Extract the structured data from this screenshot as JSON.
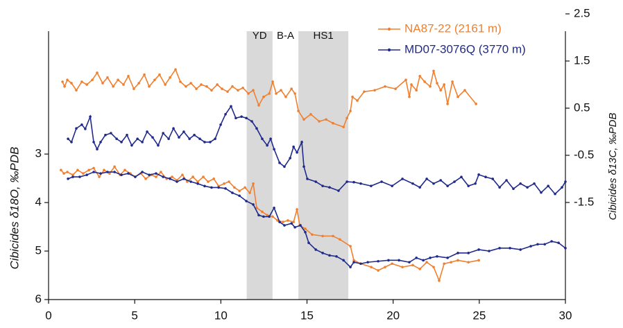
{
  "chart_data": {
    "type": "line",
    "xlim": [
      0,
      30
    ],
    "xticks": [
      0,
      5,
      10,
      15,
      20,
      25,
      30
    ],
    "ylim": [
      0.11,
      6
    ],
    "y_inverted": true,
    "yticks": [
      3,
      4,
      5,
      6
    ],
    "y2lim": [
      -3.56,
      2.5
    ],
    "y2ticks": [
      2.5,
      1.5,
      0.5,
      -0.5,
      -1.5
    ],
    "y_label": "Cibicides δ18O, ‰PDB",
    "y2_label": "Cibicides δ13C, ‰PDB",
    "legend": "top-right",
    "periods": [
      {
        "label": "YD",
        "start": 11.5,
        "end": 13,
        "shaded": true
      },
      {
        "label": "B-A",
        "start": 13,
        "end": 14.5,
        "shaded": false
      },
      {
        "label": "HS1",
        "start": 14.5,
        "end": 17.4,
        "shaded": true
      }
    ],
    "series": [
      {
        "name": "NA87-22 (2161 m)",
        "color": "#f07f2e",
        "axis": "y2",
        "x": [
          0.81,
          0.93,
          1.09,
          1.33,
          1.61,
          1.93,
          2.22,
          2.54,
          2.82,
          3.14,
          3.42,
          3.75,
          4.03,
          4.35,
          4.63,
          4.95,
          5.24,
          5.56,
          5.84,
          6.16,
          6.44,
          6.77,
          7.05,
          7.37,
          7.65,
          7.97,
          8.26,
          8.58,
          8.86,
          9.18,
          9.46,
          9.79,
          10.07,
          10.39,
          10.67,
          10.99,
          11.28,
          11.6,
          11.88,
          12.2,
          12.48,
          12.81,
          13.01,
          13.21,
          13.49,
          13.77,
          14.1,
          14.3,
          14.5,
          14.82,
          15.22,
          15.71,
          16.11,
          16.51,
          17.12,
          17.32,
          17.52,
          17.64,
          17.92,
          18.32,
          18.93,
          19.53,
          20.14,
          20.74,
          20.94,
          21.06,
          21.35,
          21.55,
          21.83,
          22.15,
          22.35,
          22.55,
          22.76,
          22.96,
          23.16,
          23.44,
          23.76,
          24.16,
          24.81
        ],
        "values": [
          1.06,
          0.96,
          1.1,
          1.03,
          0.88,
          1.06,
          1.0,
          1.1,
          1.25,
          1.03,
          1.15,
          0.96,
          1.1,
          1.0,
          1.18,
          0.91,
          1.03,
          1.21,
          0.96,
          1.1,
          1.21,
          1.0,
          1.15,
          1.32,
          1.06,
          0.96,
          1.03,
          0.91,
          1.0,
          0.96,
          0.88,
          1.0,
          0.91,
          0.85,
          0.96,
          0.88,
          0.93,
          0.81,
          0.88,
          0.56,
          0.74,
          0.81,
          1.06,
          0.81,
          0.88,
          0.74,
          0.91,
          0.81,
          0.44,
          0.26,
          0.37,
          0.22,
          0.26,
          0.18,
          0.1,
          0.29,
          0.44,
          0.74,
          0.66,
          0.85,
          0.88,
          0.96,
          0.91,
          1.1,
          0.74,
          1.0,
          0.88,
          1.18,
          1.06,
          0.96,
          1.29,
          1.03,
          0.88,
          1.0,
          0.59,
          1.06,
          0.74,
          0.88,
          0.59
        ]
      },
      {
        "name": "MD07-3076Q (3770 m)",
        "color": "#1f2a8c",
        "axis": "y2",
        "x": [
          1.13,
          1.33,
          1.61,
          1.93,
          2.13,
          2.42,
          2.62,
          2.82,
          3.02,
          3.3,
          3.62,
          3.95,
          4.23,
          4.55,
          4.83,
          5.16,
          5.44,
          5.72,
          6.04,
          6.36,
          6.65,
          6.97,
          7.25,
          7.57,
          7.85,
          8.18,
          8.46,
          8.78,
          9.06,
          9.38,
          9.67,
          9.99,
          10.27,
          10.59,
          10.87,
          11.2,
          11.48,
          11.8,
          12.08,
          12.4,
          12.69,
          12.89,
          13.09,
          13.41,
          13.69,
          14.02,
          14.22,
          14.42,
          14.7,
          14.82,
          15.02,
          15.51,
          15.91,
          16.31,
          16.83,
          17.32,
          17.72,
          18.12,
          18.72,
          19.33,
          19.94,
          20.54,
          21.14,
          21.55,
          21.95,
          22.35,
          22.76,
          23.16,
          23.56,
          23.96,
          24.37,
          24.77,
          24.97,
          25.37,
          25.78,
          26.18,
          26.58,
          26.98,
          27.39,
          27.79,
          28.19,
          28.59,
          29.0,
          29.4,
          29.8,
          30.0
        ],
        "values": [
          -0.15,
          -0.22,
          0.07,
          0.15,
          0.06,
          0.32,
          -0.22,
          -0.37,
          -0.22,
          -0.07,
          -0.03,
          -0.15,
          -0.22,
          -0.07,
          -0.29,
          -0.15,
          -0.22,
          0,
          -0.12,
          -0.29,
          -0.03,
          -0.15,
          0.07,
          -0.12,
          0,
          -0.15,
          -0.07,
          -0.15,
          -0.22,
          -0.22,
          -0.15,
          0.15,
          0.37,
          0.54,
          0.29,
          0.32,
          0.29,
          0.22,
          0.07,
          -0.15,
          -0.29,
          -0.15,
          -0.37,
          -0.66,
          -0.74,
          -0.56,
          -0.32,
          -0.44,
          -0.22,
          -0.74,
          -1.0,
          -1.06,
          -1.15,
          -1.18,
          -1.25,
          -1.06,
          -1.07,
          -1.1,
          -1.15,
          -1.06,
          -1.15,
          -1.0,
          -1.1,
          -1.18,
          -1.0,
          -1.1,
          -1.03,
          -1.15,
          -1.06,
          -0.96,
          -1.15,
          -1.1,
          -0.91,
          -0.96,
          -1.0,
          -1.18,
          -1.03,
          -1.21,
          -1.1,
          -1.18,
          -1.1,
          -1.29,
          -1.15,
          -1.32,
          -1.18,
          -1.06
        ]
      },
      {
        "color": "#f07f2e",
        "axis": "y",
        "x": [
          0.72,
          0.89,
          1.09,
          1.41,
          1.69,
          2.01,
          2.34,
          2.62,
          2.94,
          3.22,
          3.54,
          3.83,
          4.15,
          4.43,
          4.75,
          5.03,
          5.36,
          5.64,
          5.96,
          6.24,
          6.52,
          6.85,
          7.17,
          7.45,
          7.77,
          8.05,
          8.38,
          8.66,
          8.98,
          9.26,
          9.59,
          9.87,
          10.19,
          10.47,
          10.79,
          11.08,
          11.4,
          11.68,
          11.88,
          12.08,
          12.4,
          12.69,
          13.01,
          13.29,
          13.61,
          13.89,
          14.22,
          14.42,
          14.58,
          14.9,
          15.3,
          15.91,
          16.51,
          16.91,
          17.52,
          17.72,
          18.12,
          18.73,
          19.13,
          19.53,
          19.94,
          20.54,
          21.14,
          21.55,
          21.95,
          22.35,
          22.67,
          22.96,
          23.36,
          23.76,
          24.37,
          24.97
        ],
        "values": [
          3.33,
          3.4,
          3.37,
          3.43,
          3.33,
          3.4,
          3.33,
          3.29,
          3.47,
          3.33,
          3.4,
          3.26,
          3.43,
          3.33,
          3.4,
          3.47,
          3.4,
          3.51,
          3.43,
          3.47,
          3.37,
          3.51,
          3.47,
          3.54,
          3.43,
          3.57,
          3.47,
          3.57,
          3.47,
          3.57,
          3.51,
          3.66,
          3.61,
          3.57,
          3.69,
          3.76,
          3.69,
          3.8,
          3.61,
          4.11,
          4.19,
          4.26,
          4.29,
          4.37,
          4.4,
          4.37,
          4.4,
          4.14,
          4.47,
          4.54,
          4.66,
          4.69,
          4.69,
          4.76,
          4.9,
          5.19,
          5.26,
          5.33,
          5.4,
          5.33,
          5.26,
          5.33,
          5.29,
          5.37,
          5.23,
          5.33,
          5.61,
          5.26,
          5.23,
          5.19,
          5.23,
          5.19
        ]
      },
      {
        "color": "#1f2a8c",
        "axis": "y",
        "x": [
          1.13,
          1.41,
          1.81,
          2.22,
          2.62,
          3.02,
          3.42,
          3.83,
          4.23,
          4.63,
          5.03,
          5.44,
          5.84,
          6.24,
          6.65,
          7.05,
          7.45,
          7.85,
          8.26,
          8.66,
          9.06,
          9.46,
          9.87,
          10.27,
          10.67,
          11.08,
          11.48,
          11.88,
          12.2,
          12.48,
          12.81,
          13.09,
          13.41,
          13.69,
          14.1,
          14.3,
          14.62,
          14.9,
          15.1,
          15.51,
          15.91,
          16.31,
          16.71,
          17.12,
          17.52,
          17.72,
          18.12,
          18.53,
          19.13,
          19.73,
          20.34,
          20.94,
          21.35,
          21.75,
          22.15,
          22.55,
          23.16,
          23.76,
          24.37,
          24.97,
          25.57,
          26.18,
          26.78,
          27.39,
          27.99,
          28.39,
          28.8,
          29.2,
          29.6,
          30.0
        ],
        "values": [
          3.51,
          3.47,
          3.47,
          3.43,
          3.37,
          3.4,
          3.37,
          3.37,
          3.43,
          3.4,
          3.47,
          3.37,
          3.43,
          3.4,
          3.47,
          3.51,
          3.57,
          3.51,
          3.57,
          3.61,
          3.66,
          3.69,
          3.69,
          3.71,
          3.8,
          3.86,
          3.97,
          4.04,
          4.26,
          4.29,
          4.29,
          4.11,
          4.4,
          4.47,
          4.43,
          4.51,
          4.47,
          4.61,
          4.83,
          4.97,
          5.04,
          5.09,
          5.11,
          5.19,
          5.33,
          5.23,
          5.26,
          5.23,
          5.21,
          5.19,
          5.19,
          5.23,
          5.14,
          5.19,
          5.14,
          5.11,
          5.14,
          5.04,
          5.04,
          4.97,
          5.0,
          4.94,
          4.94,
          4.97,
          4.9,
          4.86,
          4.86,
          4.8,
          4.83,
          4.94
        ]
      }
    ]
  }
}
